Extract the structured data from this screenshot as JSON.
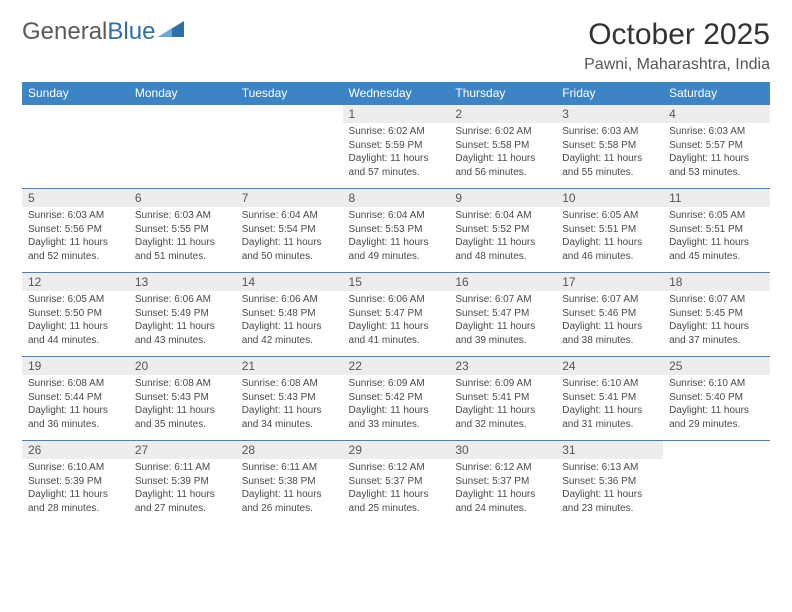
{
  "logo": {
    "text1": "General",
    "text2": "Blue"
  },
  "title": "October 2025",
  "location": "Pawni, Maharashtra, India",
  "colors": {
    "header_bg": "#3d84c5",
    "header_text": "#ffffff",
    "daynum_bg": "#ededed",
    "border": "#2e6ca8",
    "text": "#4a4a4a",
    "logo_grey": "#5a5a5a",
    "logo_blue": "#2f6fa8"
  },
  "day_headers": [
    "Sunday",
    "Monday",
    "Tuesday",
    "Wednesday",
    "Thursday",
    "Friday",
    "Saturday"
  ],
  "weeks": [
    [
      {
        "n": "",
        "sr": "",
        "ss": "",
        "dl": ""
      },
      {
        "n": "",
        "sr": "",
        "ss": "",
        "dl": ""
      },
      {
        "n": "",
        "sr": "",
        "ss": "",
        "dl": ""
      },
      {
        "n": "1",
        "sr": "Sunrise: 6:02 AM",
        "ss": "Sunset: 5:59 PM",
        "dl": "Daylight: 11 hours and 57 minutes."
      },
      {
        "n": "2",
        "sr": "Sunrise: 6:02 AM",
        "ss": "Sunset: 5:58 PM",
        "dl": "Daylight: 11 hours and 56 minutes."
      },
      {
        "n": "3",
        "sr": "Sunrise: 6:03 AM",
        "ss": "Sunset: 5:58 PM",
        "dl": "Daylight: 11 hours and 55 minutes."
      },
      {
        "n": "4",
        "sr": "Sunrise: 6:03 AM",
        "ss": "Sunset: 5:57 PM",
        "dl": "Daylight: 11 hours and 53 minutes."
      }
    ],
    [
      {
        "n": "5",
        "sr": "Sunrise: 6:03 AM",
        "ss": "Sunset: 5:56 PM",
        "dl": "Daylight: 11 hours and 52 minutes."
      },
      {
        "n": "6",
        "sr": "Sunrise: 6:03 AM",
        "ss": "Sunset: 5:55 PM",
        "dl": "Daylight: 11 hours and 51 minutes."
      },
      {
        "n": "7",
        "sr": "Sunrise: 6:04 AM",
        "ss": "Sunset: 5:54 PM",
        "dl": "Daylight: 11 hours and 50 minutes."
      },
      {
        "n": "8",
        "sr": "Sunrise: 6:04 AM",
        "ss": "Sunset: 5:53 PM",
        "dl": "Daylight: 11 hours and 49 minutes."
      },
      {
        "n": "9",
        "sr": "Sunrise: 6:04 AM",
        "ss": "Sunset: 5:52 PM",
        "dl": "Daylight: 11 hours and 48 minutes."
      },
      {
        "n": "10",
        "sr": "Sunrise: 6:05 AM",
        "ss": "Sunset: 5:51 PM",
        "dl": "Daylight: 11 hours and 46 minutes."
      },
      {
        "n": "11",
        "sr": "Sunrise: 6:05 AM",
        "ss": "Sunset: 5:51 PM",
        "dl": "Daylight: 11 hours and 45 minutes."
      }
    ],
    [
      {
        "n": "12",
        "sr": "Sunrise: 6:05 AM",
        "ss": "Sunset: 5:50 PM",
        "dl": "Daylight: 11 hours and 44 minutes."
      },
      {
        "n": "13",
        "sr": "Sunrise: 6:06 AM",
        "ss": "Sunset: 5:49 PM",
        "dl": "Daylight: 11 hours and 43 minutes."
      },
      {
        "n": "14",
        "sr": "Sunrise: 6:06 AM",
        "ss": "Sunset: 5:48 PM",
        "dl": "Daylight: 11 hours and 42 minutes."
      },
      {
        "n": "15",
        "sr": "Sunrise: 6:06 AM",
        "ss": "Sunset: 5:47 PM",
        "dl": "Daylight: 11 hours and 41 minutes."
      },
      {
        "n": "16",
        "sr": "Sunrise: 6:07 AM",
        "ss": "Sunset: 5:47 PM",
        "dl": "Daylight: 11 hours and 39 minutes."
      },
      {
        "n": "17",
        "sr": "Sunrise: 6:07 AM",
        "ss": "Sunset: 5:46 PM",
        "dl": "Daylight: 11 hours and 38 minutes."
      },
      {
        "n": "18",
        "sr": "Sunrise: 6:07 AM",
        "ss": "Sunset: 5:45 PM",
        "dl": "Daylight: 11 hours and 37 minutes."
      }
    ],
    [
      {
        "n": "19",
        "sr": "Sunrise: 6:08 AM",
        "ss": "Sunset: 5:44 PM",
        "dl": "Daylight: 11 hours and 36 minutes."
      },
      {
        "n": "20",
        "sr": "Sunrise: 6:08 AM",
        "ss": "Sunset: 5:43 PM",
        "dl": "Daylight: 11 hours and 35 minutes."
      },
      {
        "n": "21",
        "sr": "Sunrise: 6:08 AM",
        "ss": "Sunset: 5:43 PM",
        "dl": "Daylight: 11 hours and 34 minutes."
      },
      {
        "n": "22",
        "sr": "Sunrise: 6:09 AM",
        "ss": "Sunset: 5:42 PM",
        "dl": "Daylight: 11 hours and 33 minutes."
      },
      {
        "n": "23",
        "sr": "Sunrise: 6:09 AM",
        "ss": "Sunset: 5:41 PM",
        "dl": "Daylight: 11 hours and 32 minutes."
      },
      {
        "n": "24",
        "sr": "Sunrise: 6:10 AM",
        "ss": "Sunset: 5:41 PM",
        "dl": "Daylight: 11 hours and 31 minutes."
      },
      {
        "n": "25",
        "sr": "Sunrise: 6:10 AM",
        "ss": "Sunset: 5:40 PM",
        "dl": "Daylight: 11 hours and 29 minutes."
      }
    ],
    [
      {
        "n": "26",
        "sr": "Sunrise: 6:10 AM",
        "ss": "Sunset: 5:39 PM",
        "dl": "Daylight: 11 hours and 28 minutes."
      },
      {
        "n": "27",
        "sr": "Sunrise: 6:11 AM",
        "ss": "Sunset: 5:39 PM",
        "dl": "Daylight: 11 hours and 27 minutes."
      },
      {
        "n": "28",
        "sr": "Sunrise: 6:11 AM",
        "ss": "Sunset: 5:38 PM",
        "dl": "Daylight: 11 hours and 26 minutes."
      },
      {
        "n": "29",
        "sr": "Sunrise: 6:12 AM",
        "ss": "Sunset: 5:37 PM",
        "dl": "Daylight: 11 hours and 25 minutes."
      },
      {
        "n": "30",
        "sr": "Sunrise: 6:12 AM",
        "ss": "Sunset: 5:37 PM",
        "dl": "Daylight: 11 hours and 24 minutes."
      },
      {
        "n": "31",
        "sr": "Sunrise: 6:13 AM",
        "ss": "Sunset: 5:36 PM",
        "dl": "Daylight: 11 hours and 23 minutes."
      },
      {
        "n": "",
        "sr": "",
        "ss": "",
        "dl": ""
      }
    ]
  ]
}
